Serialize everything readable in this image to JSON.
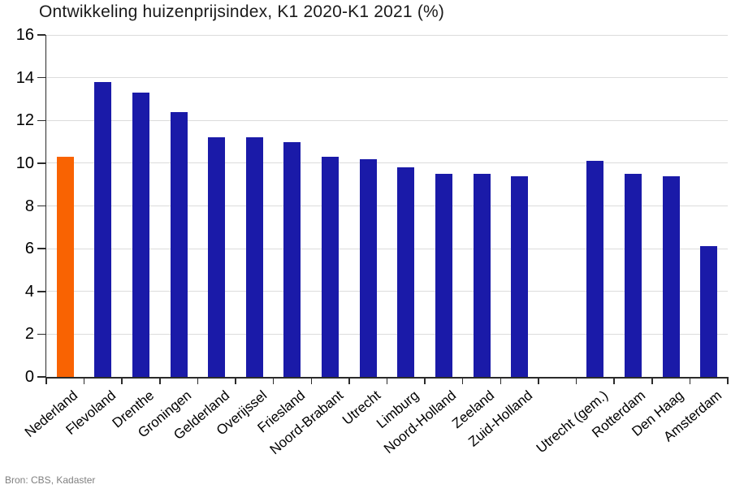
{
  "chart_data": {
    "type": "bar",
    "title": "Ontwikkeling huizenprijsindex, K1 2020-K1 2021 (%)",
    "source": "Bron: CBS, Kadaster",
    "categories": [
      "Nederland",
      "Flevoland",
      "Drenthe",
      "Groningen",
      "Gelderland",
      "Overijssel",
      "Friesland",
      "Noord-Brabant",
      "Utrecht",
      "Limburg",
      "Noord-Holland",
      "Zeeland",
      "Zuid-Holland",
      "",
      "Utrecht (gem.)",
      "Rotterdam",
      "Den Haag",
      "Amsterdam"
    ],
    "values": [
      10.3,
      13.8,
      13.3,
      12.4,
      11.2,
      11.2,
      11.0,
      10.3,
      10.2,
      9.8,
      9.5,
      9.5,
      9.4,
      null,
      10.1,
      9.5,
      9.4,
      6.1
    ],
    "highlight_index": 0,
    "ylim": [
      0,
      16
    ],
    "yticks": [
      0,
      2,
      4,
      6,
      8,
      10,
      12,
      14,
      16
    ],
    "grid": "horizontal",
    "legend": "none",
    "colors": {
      "bar": "#1A1AA8",
      "highlight": "#F96302",
      "gridline": "#DCDCDC",
      "axis": "#2B2B2B",
      "title_text": "#1A1A1A",
      "label_text": "#000000",
      "source_text": "#7F7F7F"
    }
  }
}
